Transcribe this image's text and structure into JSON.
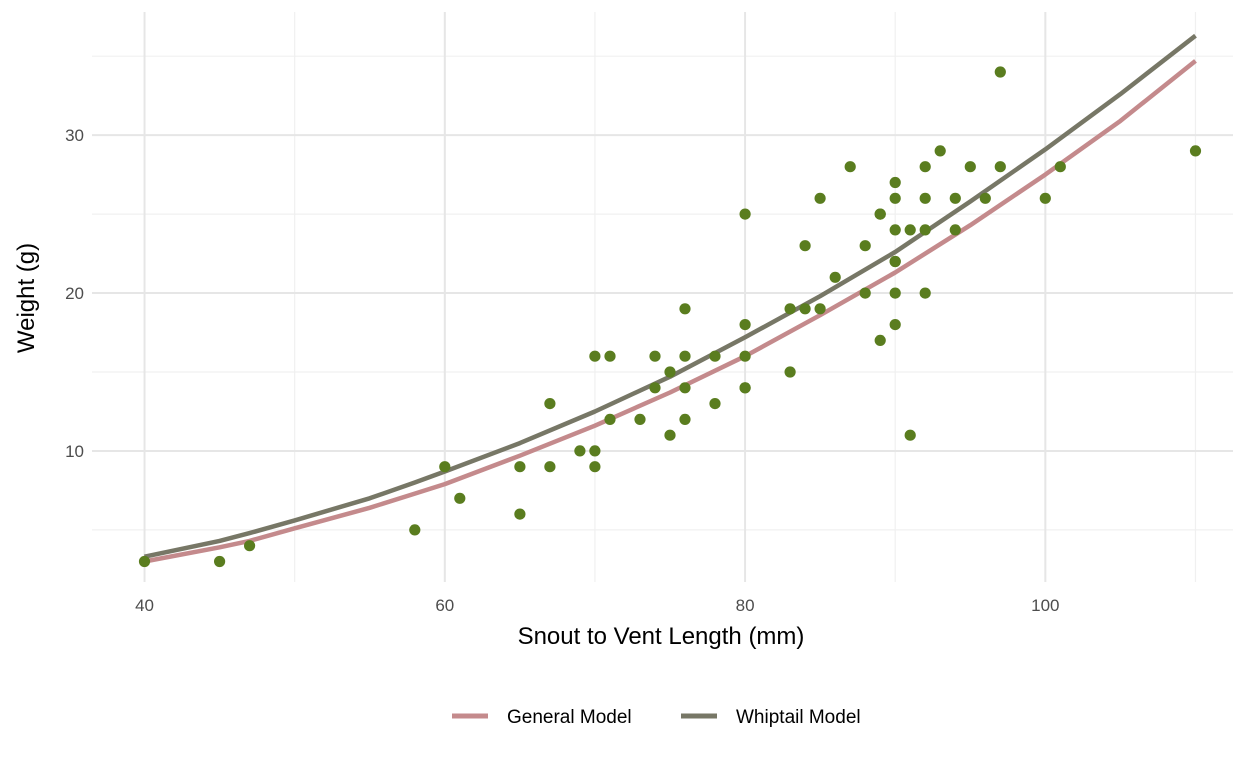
{
  "chart_data": {
    "type": "scatter",
    "xlabel": "Snout to Vent Length (mm)",
    "ylabel": "Weight (g)",
    "xlim": [
      36.5,
      112.5
    ],
    "ylim": [
      1.7,
      37.8
    ],
    "x_ticks": [
      40,
      60,
      80,
      100
    ],
    "y_ticks": [
      10,
      20,
      30
    ],
    "grid": true,
    "legend_position": "bottom",
    "colors": {
      "points": "#5a7d1f",
      "general": "#c48a8c",
      "whiptail": "#777766",
      "grid_major": "#e6e6e6",
      "grid_minor": "#f0f0f0"
    },
    "points": [
      [
        40,
        3
      ],
      [
        45,
        3
      ],
      [
        47,
        4
      ],
      [
        58,
        5
      ],
      [
        60,
        9
      ],
      [
        61,
        7
      ],
      [
        65,
        6
      ],
      [
        65,
        9
      ],
      [
        67,
        9
      ],
      [
        67,
        13
      ],
      [
        69,
        10
      ],
      [
        70,
        9
      ],
      [
        70,
        10
      ],
      [
        70,
        16
      ],
      [
        71,
        12
      ],
      [
        71,
        16
      ],
      [
        73,
        12
      ],
      [
        74,
        14
      ],
      [
        74,
        16
      ],
      [
        75,
        11
      ],
      [
        75,
        15
      ],
      [
        76,
        12
      ],
      [
        76,
        14
      ],
      [
        76,
        16
      ],
      [
        76,
        19
      ],
      [
        78,
        13
      ],
      [
        78,
        16
      ],
      [
        80,
        14
      ],
      [
        80,
        14
      ],
      [
        80,
        16
      ],
      [
        80,
        18
      ],
      [
        80,
        25
      ],
      [
        83,
        15
      ],
      [
        83,
        19
      ],
      [
        84,
        19
      ],
      [
        84,
        23
      ],
      [
        85,
        19
      ],
      [
        85,
        26
      ],
      [
        86,
        21
      ],
      [
        87,
        28
      ],
      [
        88,
        20
      ],
      [
        88,
        23
      ],
      [
        89,
        17
      ],
      [
        89,
        25
      ],
      [
        89,
        25
      ],
      [
        90,
        18
      ],
      [
        90,
        20
      ],
      [
        90,
        22
      ],
      [
        90,
        22
      ],
      [
        90,
        24
      ],
      [
        90,
        26
      ],
      [
        90,
        27
      ],
      [
        91,
        11
      ],
      [
        91,
        24
      ],
      [
        92,
        20
      ],
      [
        92,
        24
      ],
      [
        92,
        26
      ],
      [
        92,
        28
      ],
      [
        93,
        29
      ],
      [
        94,
        24
      ],
      [
        94,
        26
      ],
      [
        95,
        28
      ],
      [
        96,
        26
      ],
      [
        97,
        28
      ],
      [
        97,
        34
      ],
      [
        100,
        26
      ],
      [
        101,
        28
      ],
      [
        110,
        29
      ]
    ],
    "series": [
      {
        "name": "General Model",
        "x": [
          40,
          45,
          47,
          50,
          55,
          58,
          60,
          65,
          70,
          75,
          80,
          85,
          90,
          95,
          100,
          105,
          110
        ],
        "y": [
          3.0,
          3.9,
          4.3,
          5.1,
          6.4,
          7.3,
          7.9,
          9.7,
          11.6,
          13.7,
          16.0,
          18.6,
          21.3,
          24.3,
          27.5,
          30.9,
          34.7
        ]
      },
      {
        "name": "Whiptail Model",
        "x": [
          40,
          45,
          47,
          50,
          55,
          58,
          60,
          65,
          70,
          75,
          80,
          85,
          90,
          95,
          100,
          105,
          110
        ],
        "y": [
          3.3,
          4.3,
          4.8,
          5.6,
          7.0,
          8.0,
          8.7,
          10.5,
          12.5,
          14.7,
          17.2,
          19.8,
          22.6,
          25.8,
          29.1,
          32.6,
          36.3
        ]
      }
    ]
  }
}
